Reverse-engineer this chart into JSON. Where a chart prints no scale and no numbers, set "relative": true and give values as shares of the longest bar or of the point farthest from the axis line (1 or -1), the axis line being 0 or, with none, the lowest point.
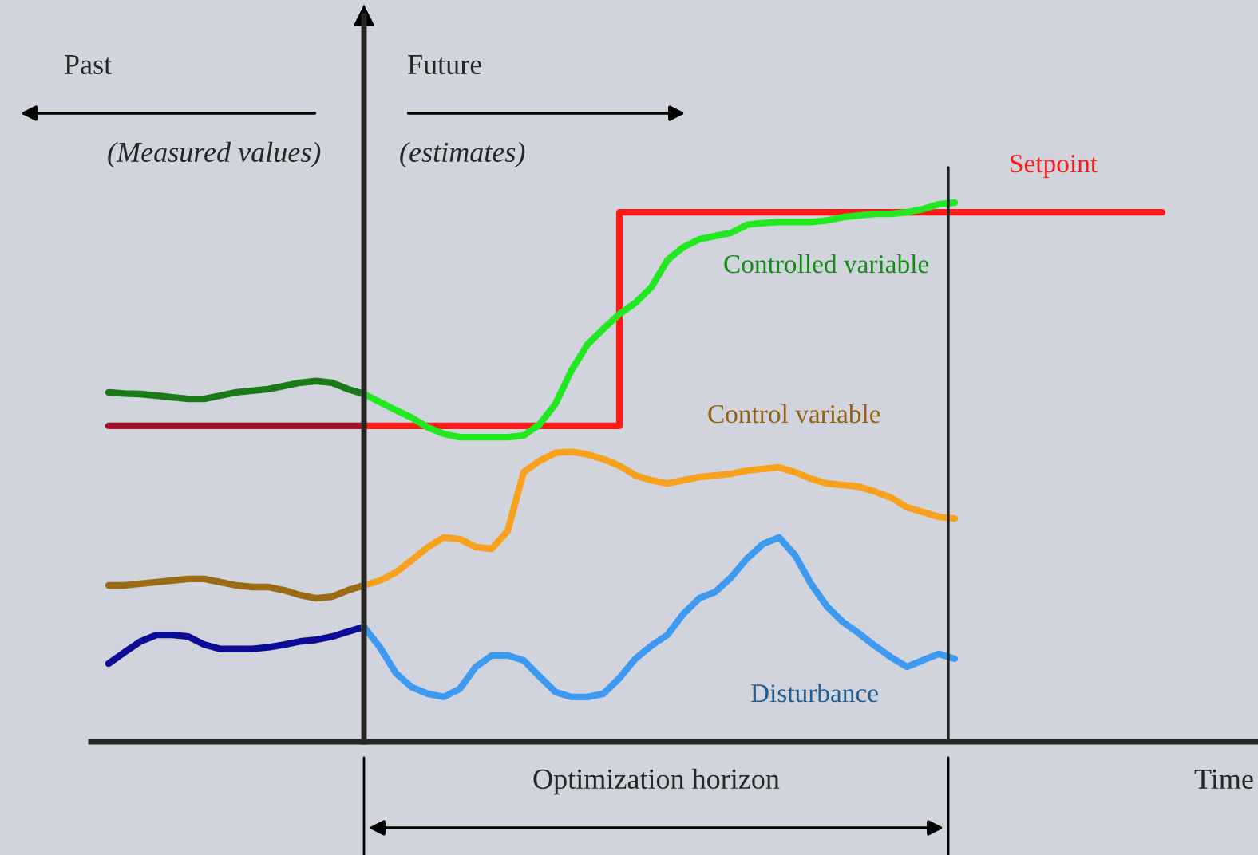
{
  "chart_data": {
    "type": "line",
    "relative": true,
    "grid": false,
    "legend": false,
    "xlabel": "Time",
    "categories": [
      null,
      null,
      null,
      null,
      null,
      null,
      null,
      null,
      null,
      null,
      null,
      null,
      null,
      null,
      null,
      null,
      null,
      null,
      null,
      null,
      null,
      null,
      null,
      null,
      null,
      null,
      null,
      null,
      null,
      null,
      null,
      null,
      null,
      null,
      null,
      null,
      null,
      null,
      null,
      null,
      null,
      null,
      null,
      null,
      null,
      null,
      null,
      null,
      null,
      null,
      null,
      null,
      null,
      null,
      null,
      null,
      null,
      null,
      null,
      null,
      null,
      null,
      null,
      null,
      null,
      null,
      null,
      null
    ],
    "series": [
      {
        "color": "#a0122a",
        "values": [
          null,
          0.586,
          0.586,
          0.586,
          0.586,
          0.586,
          0.586,
          0.586,
          0.586,
          0.586,
          0.586,
          0.586,
          0.586,
          0.586,
          0.586,
          0.586,
          0.586,
          0.586,
          null,
          null,
          null,
          null,
          null,
          null,
          null,
          null,
          null,
          null,
          null,
          null,
          null,
          null,
          null,
          null,
          null,
          null,
          null,
          null,
          null,
          null,
          null,
          null,
          null,
          null,
          null,
          null,
          null,
          null,
          null,
          null,
          null,
          null,
          null,
          null,
          null,
          null,
          null,
          null,
          null,
          null,
          null,
          null,
          null,
          null,
          null,
          null,
          null,
          null
        ]
      },
      {
        "type": "step",
        "name": "Setpoint",
        "color": "#ff1a1a",
        "values": [
          null,
          null,
          null,
          null,
          null,
          null,
          null,
          null,
          null,
          null,
          null,
          null,
          null,
          null,
          null,
          null,
          null,
          0.586,
          0.586,
          0.586,
          0.586,
          0.586,
          0.586,
          0.586,
          0.586,
          0.586,
          0.586,
          0.586,
          0.586,
          0.586,
          0.586,
          0.586,
          0.586,
          0.982,
          0.982,
          0.982,
          0.982,
          0.982,
          0.982,
          0.982,
          0.982,
          0.982,
          0.982,
          0.982,
          0.982,
          0.982,
          0.982,
          0.982,
          0.982,
          0.982,
          0.982,
          0.982,
          0.982,
          0.982,
          0.982,
          0.982,
          0.982,
          0.982,
          0.982,
          0.982,
          0.982,
          0.982,
          0.982,
          0.982,
          0.982,
          0.982,
          0.982,
          0.982
        ]
      },
      {
        "color": "#1a7a1a",
        "values": [
          null,
          0.648,
          0.646,
          0.645,
          0.642,
          0.639,
          0.636,
          0.636,
          0.642,
          0.648,
          0.651,
          0.654,
          0.66,
          0.666,
          0.669,
          0.666,
          0.654,
          0.645,
          null,
          null,
          null,
          null,
          null,
          null,
          null,
          null,
          null,
          null,
          null,
          null,
          null,
          null,
          null,
          null,
          null,
          null,
          null,
          null,
          null,
          null,
          null,
          null,
          null,
          null,
          null,
          null,
          null,
          null,
          null,
          null,
          null,
          null,
          null,
          null,
          null,
          null,
          null,
          null,
          null,
          null,
          null,
          null,
          null,
          null,
          null,
          null,
          null,
          null
        ]
      },
      {
        "name": "Controlled variable",
        "color": "#22e822",
        "values": [
          null,
          null,
          null,
          null,
          null,
          null,
          null,
          null,
          null,
          null,
          null,
          null,
          null,
          null,
          null,
          null,
          null,
          0.645,
          0.63,
          0.615,
          0.601,
          0.583,
          0.571,
          0.565,
          0.565,
          0.565,
          0.565,
          0.568,
          0.589,
          0.627,
          0.689,
          0.737,
          0.766,
          0.793,
          0.814,
          0.843,
          0.893,
          0.917,
          0.932,
          0.938,
          0.944,
          0.959,
          0.962,
          0.964,
          0.964,
          0.964,
          0.967,
          0.973,
          0.976,
          0.979,
          0.979,
          0.982,
          0.988,
          0.997,
          1.0,
          null,
          null,
          null,
          null,
          null,
          null,
          null,
          null,
          null,
          null,
          null,
          null,
          null
        ]
      },
      {
        "color": "#9a6a14",
        "values": [
          null,
          0.29,
          0.29,
          0.293,
          0.296,
          0.299,
          0.302,
          0.302,
          0.296,
          0.29,
          0.287,
          0.287,
          0.281,
          0.272,
          0.266,
          0.269,
          0.281,
          0.29,
          null,
          null,
          null,
          null,
          null,
          null,
          null,
          null,
          null,
          null,
          null,
          null,
          null,
          null,
          null,
          null,
          null,
          null,
          null,
          null,
          null,
          null,
          null,
          null,
          null,
          null,
          null,
          null,
          null,
          null,
          null,
          null,
          null,
          null,
          null,
          null,
          null,
          null,
          null,
          null,
          null,
          null,
          null,
          null,
          null,
          null,
          null,
          null,
          null,
          null
        ]
      },
      {
        "name": "Control variable",
        "color": "#f7a11f",
        "values": [
          null,
          null,
          null,
          null,
          null,
          null,
          null,
          null,
          null,
          null,
          null,
          null,
          null,
          null,
          null,
          null,
          null,
          0.29,
          0.299,
          0.314,
          0.337,
          0.361,
          0.379,
          0.376,
          0.361,
          0.358,
          0.391,
          0.5,
          0.521,
          0.536,
          0.538,
          0.533,
          0.524,
          0.512,
          0.494,
          0.485,
          0.479,
          0.485,
          0.491,
          0.494,
          0.497,
          0.503,
          0.506,
          0.509,
          0.5,
          0.488,
          0.479,
          0.476,
          0.473,
          0.464,
          0.453,
          0.435,
          0.426,
          0.417,
          0.414,
          null,
          null,
          null,
          null,
          null,
          null,
          null,
          null,
          null,
          null,
          null,
          null,
          null
        ]
      },
      {
        "color": "#0c0c96",
        "values": [
          null,
          0.145,
          0.166,
          0.186,
          0.198,
          0.198,
          0.195,
          0.18,
          0.172,
          0.172,
          0.172,
          0.175,
          0.18,
          0.186,
          0.189,
          0.195,
          0.204,
          0.213,
          null,
          null,
          null,
          null,
          null,
          null,
          null,
          null,
          null,
          null,
          null,
          null,
          null,
          null,
          null,
          null,
          null,
          null,
          null,
          null,
          null,
          null,
          null,
          null,
          null,
          null,
          null,
          null,
          null,
          null,
          null,
          null,
          null,
          null,
          null,
          null,
          null,
          null,
          null,
          null,
          null,
          null,
          null,
          null,
          null,
          null,
          null,
          null,
          null,
          null
        ]
      },
      {
        "name": "Disturbance",
        "color": "#3d9af0",
        "values": [
          null,
          null,
          null,
          null,
          null,
          null,
          null,
          null,
          null,
          null,
          null,
          null,
          null,
          null,
          null,
          null,
          null,
          0.213,
          0.175,
          0.127,
          0.101,
          0.089,
          0.083,
          0.098,
          0.139,
          0.16,
          0.16,
          0.151,
          0.121,
          0.092,
          0.083,
          0.083,
          0.089,
          0.118,
          0.154,
          0.178,
          0.198,
          0.237,
          0.266,
          0.278,
          0.305,
          0.34,
          0.367,
          0.379,
          0.346,
          0.293,
          0.251,
          0.222,
          0.201,
          0.178,
          0.157,
          0.139,
          0.151,
          0.163,
          0.154,
          null,
          null,
          null,
          null,
          null,
          null,
          null,
          null,
          null,
          null,
          null,
          null,
          null
        ]
      }
    ],
    "annotations": [
      "Past",
      "Future",
      "(Measured values)",
      "(estimates)",
      "Optimization horizon"
    ]
  }
}
